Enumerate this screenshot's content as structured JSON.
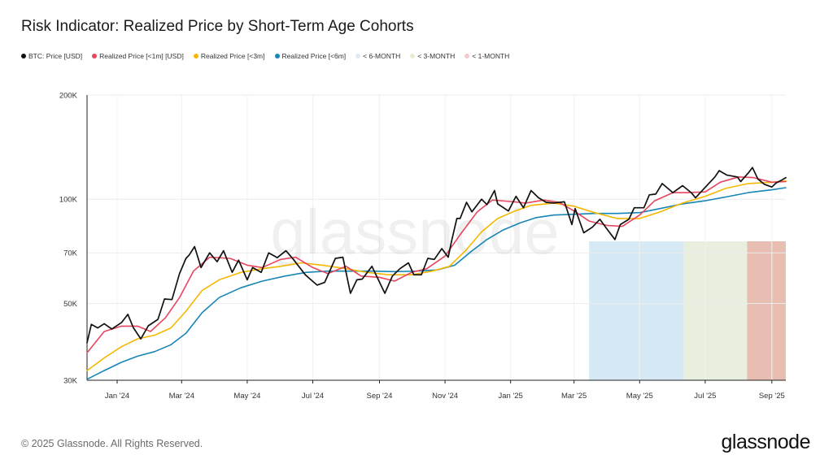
{
  "title": "Risk Indicator: Realized Price by Short-Term Age Cohorts",
  "footer": "© 2025 Glassnode. All Rights Reserved.",
  "brand": "glassnode",
  "watermark": "glassnode",
  "legend": [
    {
      "label": "BTC: Price [USD]",
      "color": "#111111"
    },
    {
      "label": "Realized Price [<1m] [USD]",
      "color": "#e8455e"
    },
    {
      "label": "Realized Price [<3m]",
      "color": "#f5b800"
    },
    {
      "label": "Realized Price [<6m]",
      "color": "#1786b5"
    },
    {
      "label": "< 6-MONTH",
      "color": "#dfe9f2"
    },
    {
      "label": "< 3-MONTH",
      "color": "#ecebd5"
    },
    {
      "label": "< 1-MONTH",
      "color": "#f2cccc"
    }
  ],
  "chart_data": {
    "type": "line",
    "y_scale": "log",
    "ylim": [
      30000,
      200000
    ],
    "xlim": [
      "2023-12-04",
      "2025-09-14"
    ],
    "y_ticks": [
      {
        "value": 30000,
        "label": "30K"
      },
      {
        "value": 50000,
        "label": "50K"
      },
      {
        "value": 70000,
        "label": "70K"
      },
      {
        "value": 100000,
        "label": "100K"
      },
      {
        "value": 200000,
        "label": "200K"
      }
    ],
    "x_ticks": [
      {
        "date": "2024-01-01",
        "label": "Jan '24"
      },
      {
        "date": "2024-03-01",
        "label": "Mar '24"
      },
      {
        "date": "2024-05-01",
        "label": "May '24"
      },
      {
        "date": "2024-07-01",
        "label": "Jul '24"
      },
      {
        "date": "2024-09-01",
        "label": "Sep '24"
      },
      {
        "date": "2024-11-01",
        "label": "Nov '24"
      },
      {
        "date": "2025-01-01",
        "label": "Jan '25"
      },
      {
        "date": "2025-03-01",
        "label": "Mar '25"
      },
      {
        "date": "2025-05-01",
        "label": "May '25"
      },
      {
        "date": "2025-07-01",
        "label": "Jul '25"
      },
      {
        "date": "2025-09-01",
        "label": "Sep '25"
      }
    ],
    "bands": [
      {
        "name": "< 6-MONTH",
        "start": "2025-03-15",
        "end": "2025-06-11",
        "color": "#cfe6f5"
      },
      {
        "name": "< 3-MONTH",
        "start": "2025-06-11",
        "end": "2025-08-09",
        "color": "#e5ecd9"
      },
      {
        "name": "< 1-MONTH",
        "start": "2025-08-09",
        "end": "2025-09-14",
        "color": "#e4b3a6"
      }
    ],
    "series": [
      {
        "name": "BTC: Price [USD]",
        "color": "#111111",
        "width": 1.7,
        "points": [
          [
            "2023-12-04",
            38500
          ],
          [
            "2023-12-08",
            43500
          ],
          [
            "2023-12-14",
            42500
          ],
          [
            "2023-12-20",
            43700
          ],
          [
            "2023-12-27",
            42200
          ],
          [
            "2024-01-05",
            44000
          ],
          [
            "2024-01-11",
            46500
          ],
          [
            "2024-01-16",
            42600
          ],
          [
            "2024-01-23",
            39500
          ],
          [
            "2024-01-30",
            43100
          ],
          [
            "2024-02-08",
            45000
          ],
          [
            "2024-02-14",
            51500
          ],
          [
            "2024-02-21",
            51300
          ],
          [
            "2024-02-28",
            61000
          ],
          [
            "2024-03-05",
            67500
          ],
          [
            "2024-03-08",
            69000
          ],
          [
            "2024-03-13",
            73000
          ],
          [
            "2024-03-19",
            63500
          ],
          [
            "2024-03-27",
            70000
          ],
          [
            "2024-04-03",
            66000
          ],
          [
            "2024-04-09",
            71000
          ],
          [
            "2024-04-17",
            61500
          ],
          [
            "2024-04-23",
            66700
          ],
          [
            "2024-05-01",
            58500
          ],
          [
            "2024-05-06",
            63500
          ],
          [
            "2024-05-14",
            61500
          ],
          [
            "2024-05-21",
            70000
          ],
          [
            "2024-05-29",
            67800
          ],
          [
            "2024-06-06",
            71000
          ],
          [
            "2024-06-13",
            67000
          ],
          [
            "2024-06-24",
            60500
          ],
          [
            "2024-07-05",
            56500
          ],
          [
            "2024-07-12",
            57500
          ],
          [
            "2024-07-22",
            67500
          ],
          [
            "2024-07-29",
            68000
          ],
          [
            "2024-08-05",
            53500
          ],
          [
            "2024-08-11",
            58500
          ],
          [
            "2024-08-16",
            58800
          ],
          [
            "2024-08-25",
            64000
          ],
          [
            "2024-09-06",
            53500
          ],
          [
            "2024-09-13",
            60000
          ],
          [
            "2024-09-20",
            63000
          ],
          [
            "2024-09-28",
            65500
          ],
          [
            "2024-10-03",
            60500
          ],
          [
            "2024-10-10",
            60500
          ],
          [
            "2024-10-16",
            67500
          ],
          [
            "2024-10-22",
            67000
          ],
          [
            "2024-10-29",
            72000
          ],
          [
            "2024-11-04",
            68000
          ],
          [
            "2024-11-07",
            75500
          ],
          [
            "2024-11-12",
            88000
          ],
          [
            "2024-11-15",
            88000
          ],
          [
            "2024-11-21",
            98000
          ],
          [
            "2024-11-26",
            92000
          ],
          [
            "2024-12-05",
            100000
          ],
          [
            "2024-12-10",
            96500
          ],
          [
            "2024-12-17",
            106000
          ],
          [
            "2024-12-20",
            97000
          ],
          [
            "2024-12-30",
            92500
          ],
          [
            "2025-01-06",
            102000
          ],
          [
            "2025-01-13",
            94500
          ],
          [
            "2025-01-20",
            106000
          ],
          [
            "2025-01-27",
            101000
          ],
          [
            "2025-02-03",
            98000
          ],
          [
            "2025-02-10",
            97500
          ],
          [
            "2025-02-20",
            98300
          ],
          [
            "2025-02-27",
            84500
          ],
          [
            "2025-03-02",
            94000
          ],
          [
            "2025-03-10",
            80000
          ],
          [
            "2025-03-18",
            83000
          ],
          [
            "2025-03-25",
            87500
          ],
          [
            "2025-03-31",
            82500
          ],
          [
            "2025-04-08",
            76500
          ],
          [
            "2025-04-13",
            84500
          ],
          [
            "2025-04-21",
            87500
          ],
          [
            "2025-04-26",
            94500
          ],
          [
            "2025-05-05",
            94500
          ],
          [
            "2025-05-10",
            103000
          ],
          [
            "2025-05-16",
            103500
          ],
          [
            "2025-05-22",
            111000
          ],
          [
            "2025-06-01",
            104500
          ],
          [
            "2025-06-10",
            109500
          ],
          [
            "2025-06-18",
            104500
          ],
          [
            "2025-06-22",
            101000
          ],
          [
            "2025-06-30",
            107500
          ],
          [
            "2025-07-10",
            116000
          ],
          [
            "2025-07-14",
            121000
          ],
          [
            "2025-07-21",
            117500
          ],
          [
            "2025-07-31",
            116000
          ],
          [
            "2025-08-03",
            112500
          ],
          [
            "2025-08-10",
            119000
          ],
          [
            "2025-08-14",
            123500
          ],
          [
            "2025-08-19",
            114500
          ],
          [
            "2025-08-25",
            110500
          ],
          [
            "2025-09-01",
            108500
          ],
          [
            "2025-09-05",
            111500
          ],
          [
            "2025-09-10",
            113500
          ],
          [
            "2025-09-14",
            115500
          ]
        ]
      },
      {
        "name": "Realized Price [<1m] [USD]",
        "color": "#e8455e",
        "width": 1.6,
        "points": [
          [
            "2023-12-04",
            36000
          ],
          [
            "2023-12-20",
            41500
          ],
          [
            "2024-01-05",
            43000
          ],
          [
            "2024-01-20",
            43000
          ],
          [
            "2024-02-01",
            41500
          ],
          [
            "2024-02-15",
            45500
          ],
          [
            "2024-02-28",
            52000
          ],
          [
            "2024-03-12",
            62000
          ],
          [
            "2024-03-27",
            68000
          ],
          [
            "2024-04-15",
            67500
          ],
          [
            "2024-05-01",
            64500
          ],
          [
            "2024-05-15",
            63500
          ],
          [
            "2024-06-01",
            67000
          ],
          [
            "2024-06-15",
            68000
          ],
          [
            "2024-07-01",
            63500
          ],
          [
            "2024-07-15",
            61000
          ],
          [
            "2024-08-01",
            64000
          ],
          [
            "2024-08-15",
            60000
          ],
          [
            "2024-09-01",
            59500
          ],
          [
            "2024-09-15",
            58000
          ],
          [
            "2024-10-01",
            61500
          ],
          [
            "2024-10-15",
            63000
          ],
          [
            "2024-11-01",
            68500
          ],
          [
            "2024-11-15",
            79000
          ],
          [
            "2024-12-01",
            92000
          ],
          [
            "2024-12-15",
            99500
          ],
          [
            "2025-01-01",
            98500
          ],
          [
            "2025-01-15",
            97500
          ],
          [
            "2025-02-01",
            99500
          ],
          [
            "2025-02-15",
            98000
          ],
          [
            "2025-03-01",
            92500
          ],
          [
            "2025-03-15",
            86500
          ],
          [
            "2025-04-01",
            84000
          ],
          [
            "2025-04-15",
            83500
          ],
          [
            "2025-05-01",
            90000
          ],
          [
            "2025-05-15",
            99000
          ],
          [
            "2025-06-01",
            104500
          ],
          [
            "2025-06-15",
            104500
          ],
          [
            "2025-07-01",
            105000
          ],
          [
            "2025-07-15",
            112000
          ],
          [
            "2025-08-01",
            116000
          ],
          [
            "2025-08-15",
            115500
          ],
          [
            "2025-09-01",
            112000
          ],
          [
            "2025-09-14",
            112500
          ]
        ]
      },
      {
        "name": "Realized Price [<3m]",
        "color": "#f5b800",
        "width": 1.6,
        "points": [
          [
            "2023-12-04",
            32000
          ],
          [
            "2023-12-20",
            34800
          ],
          [
            "2024-01-05",
            37500
          ],
          [
            "2024-01-20",
            39500
          ],
          [
            "2024-02-05",
            40500
          ],
          [
            "2024-02-20",
            42500
          ],
          [
            "2024-03-05",
            47500
          ],
          [
            "2024-03-20",
            54500
          ],
          [
            "2024-04-05",
            58500
          ],
          [
            "2024-04-25",
            61500
          ],
          [
            "2024-05-15",
            63000
          ],
          [
            "2024-06-01",
            64000
          ],
          [
            "2024-06-20",
            65500
          ],
          [
            "2024-07-10",
            64500
          ],
          [
            "2024-08-01",
            63000
          ],
          [
            "2024-08-20",
            61500
          ],
          [
            "2024-09-10",
            60500
          ],
          [
            "2024-10-01",
            60500
          ],
          [
            "2024-10-20",
            62000
          ],
          [
            "2024-11-05",
            64000
          ],
          [
            "2024-11-20",
            71000
          ],
          [
            "2024-12-05",
            80500
          ],
          [
            "2024-12-20",
            88000
          ],
          [
            "2025-01-05",
            92500
          ],
          [
            "2025-01-20",
            96000
          ],
          [
            "2025-02-10",
            97500
          ],
          [
            "2025-03-01",
            95500
          ],
          [
            "2025-03-20",
            91500
          ],
          [
            "2025-04-10",
            88000
          ],
          [
            "2025-05-01",
            88000
          ],
          [
            "2025-05-20",
            92000
          ],
          [
            "2025-06-10",
            97500
          ],
          [
            "2025-07-01",
            102000
          ],
          [
            "2025-07-20",
            107500
          ],
          [
            "2025-08-10",
            111000
          ],
          [
            "2025-09-01",
            112000
          ],
          [
            "2025-09-14",
            113000
          ]
        ]
      },
      {
        "name": "Realized Price [<6m]",
        "color": "#1786b5",
        "width": 1.6,
        "points": [
          [
            "2023-12-04",
            30200
          ],
          [
            "2023-12-20",
            32000
          ],
          [
            "2024-01-05",
            33800
          ],
          [
            "2024-01-20",
            35200
          ],
          [
            "2024-02-05",
            36300
          ],
          [
            "2024-02-20",
            38000
          ],
          [
            "2024-03-05",
            41000
          ],
          [
            "2024-03-20",
            47000
          ],
          [
            "2024-04-05",
            52000
          ],
          [
            "2024-04-25",
            55500
          ],
          [
            "2024-05-15",
            58000
          ],
          [
            "2024-06-05",
            60000
          ],
          [
            "2024-06-25",
            61500
          ],
          [
            "2024-07-15",
            62000
          ],
          [
            "2024-08-05",
            62000
          ],
          [
            "2024-08-25",
            62000
          ],
          [
            "2024-09-15",
            61800
          ],
          [
            "2024-10-05",
            62000
          ],
          [
            "2024-10-25",
            62500
          ],
          [
            "2024-11-10",
            64500
          ],
          [
            "2024-11-25",
            70500
          ],
          [
            "2024-12-10",
            76500
          ],
          [
            "2024-12-25",
            81500
          ],
          [
            "2025-01-10",
            85500
          ],
          [
            "2025-01-25",
            88500
          ],
          [
            "2025-02-10",
            90000
          ],
          [
            "2025-03-01",
            90500
          ],
          [
            "2025-03-20",
            91000
          ],
          [
            "2025-04-10",
            91000
          ],
          [
            "2025-05-01",
            91500
          ],
          [
            "2025-05-20",
            94000
          ],
          [
            "2025-06-10",
            97000
          ],
          [
            "2025-07-01",
            99000
          ],
          [
            "2025-07-20",
            101500
          ],
          [
            "2025-08-10",
            104500
          ],
          [
            "2025-09-01",
            106500
          ],
          [
            "2025-09-14",
            108000
          ]
        ]
      }
    ]
  }
}
